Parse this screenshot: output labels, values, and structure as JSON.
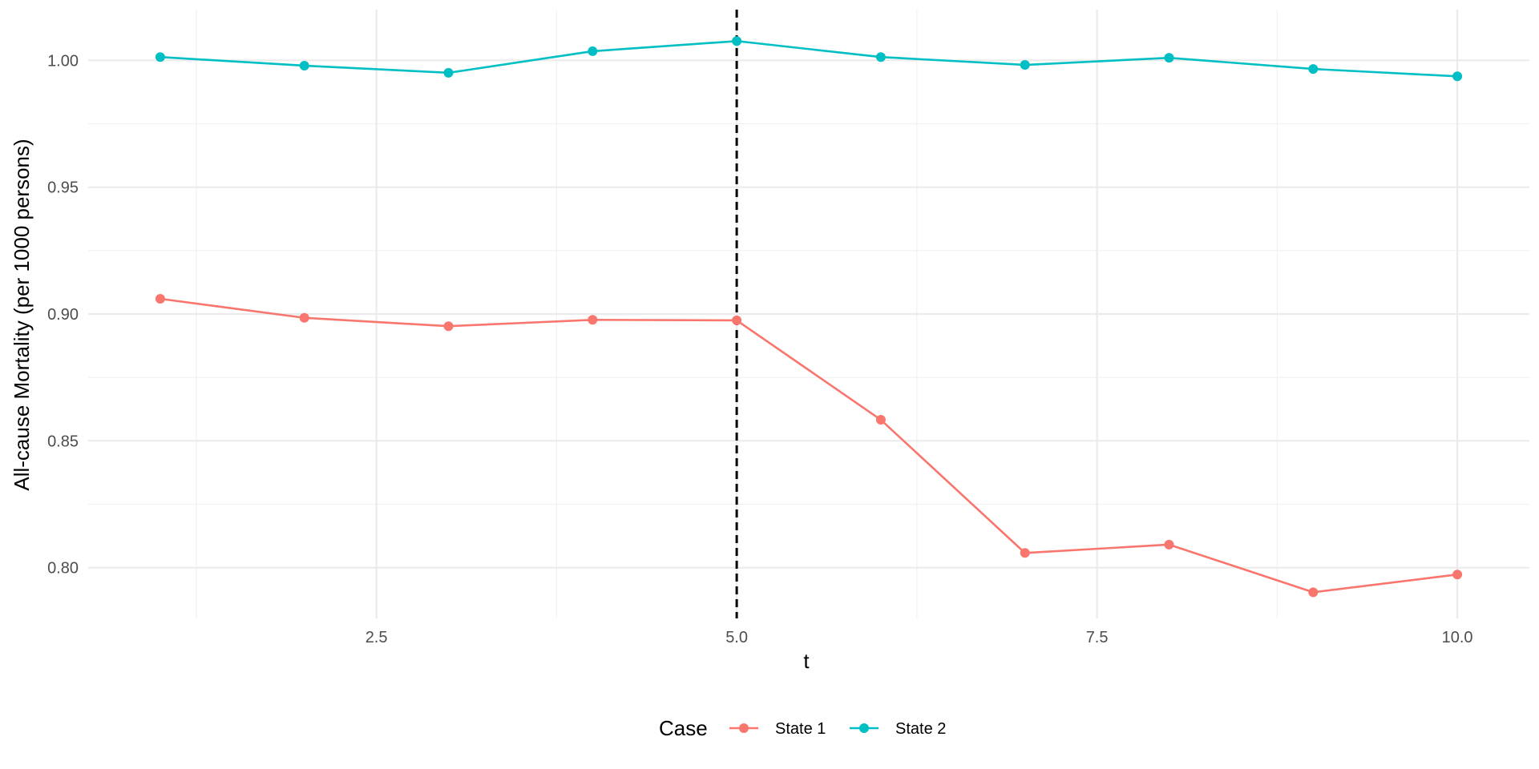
{
  "chart_data": {
    "type": "line",
    "title": "",
    "xlabel": "t",
    "ylabel": "All-cause Mortality (per 1000 persons)",
    "x": [
      1,
      2,
      3,
      4,
      5,
      6,
      7,
      8,
      9,
      10
    ],
    "xlim": [
      0.5,
      10.5
    ],
    "ylim": [
      0.78,
      1.02
    ],
    "x_ticks": [
      2.5,
      5.0,
      7.5,
      10.0
    ],
    "x_tick_labels": [
      "2.5",
      "5.0",
      "7.5",
      "10.0"
    ],
    "y_ticks": [
      0.8,
      0.85,
      0.9,
      0.95,
      1.0
    ],
    "y_tick_labels": [
      "0.80",
      "0.85",
      "0.90",
      "0.95",
      "1.00"
    ],
    "grid": true,
    "vline": {
      "x": 5.0,
      "style": "dashed",
      "color": "#000000"
    },
    "legend": {
      "title": "Case",
      "position": "bottom"
    },
    "series": [
      {
        "name": "State 1",
        "color": "#F8766D",
        "values": [
          0.906,
          0.8985,
          0.8952,
          0.8977,
          0.8975,
          0.8583,
          0.8058,
          0.8091,
          0.7903,
          0.7973
        ]
      },
      {
        "name": "State 2",
        "color": "#00BFC4",
        "values": [
          1.0013,
          0.9979,
          0.9951,
          1.0036,
          1.0076,
          1.0013,
          0.9982,
          1.001,
          0.9966,
          0.9937
        ]
      }
    ]
  }
}
